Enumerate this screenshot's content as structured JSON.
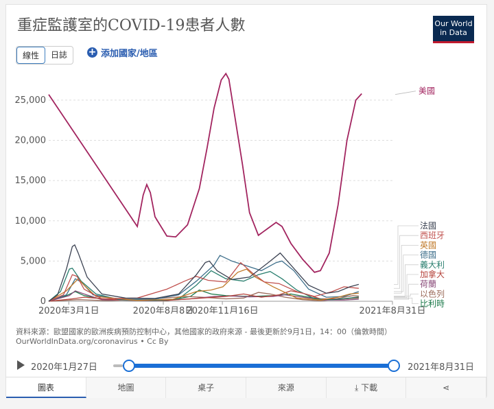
{
  "title": "重症監護室的COVID-19患者人數",
  "logo": {
    "line1": "Our World",
    "line2": "in Data"
  },
  "toggle": {
    "linear": "線性",
    "log": "日誌"
  },
  "add_country": "添加國家/地區",
  "source_line1": "資料來源：歐盟國家的歐洲疾病預防控制中心，其他國家的政府來源 - 最後更新於9月1日，14：00（倫敦時間）",
  "source_line2": "OurWorldInData.org/coronavirus • Cc By",
  "timeline": {
    "start": "2020年1月27日",
    "end": "2021年8月31日"
  },
  "tabs": [
    {
      "label": "圖表"
    },
    {
      "label": "地圖"
    },
    {
      "label": "桌子"
    },
    {
      "label": "來源"
    },
    {
      "label": "下載"
    },
    {
      "label": ""
    }
  ],
  "colors": {
    "美國": "#a2245f",
    "法國": "#3b4252",
    "西班牙": "#c0504d",
    "英國": "#c07a2a",
    "德國": "#3d6e8a",
    "義大利": "#2a7f6f",
    "加拿大": "#b5423a",
    "荷蘭": "#8a4b7a",
    "以色列": "#9b6b5a",
    "比利時": "#1c7a4a"
  },
  "chart_data": {
    "type": "line",
    "title": "重症監護室的COVID-19患者人數",
    "x_ticks": [
      {
        "label": "2020年3月1日",
        "t": 34
      },
      {
        "label": "2020年8月8日",
        "t": 194
      },
      {
        "label": "2020年11月16日",
        "t": 294
      },
      {
        "label": "2021年8月31日",
        "t": 582
      }
    ],
    "x_range": [
      0,
      582
    ],
    "ylim": [
      0,
      29000
    ],
    "y_ticks": [
      0,
      5000,
      10000,
      15000,
      20000,
      25000
    ],
    "y_tick_labels": [
      "0",
      "5,000",
      "10,000",
      "15,000",
      "20,000",
      "25,000"
    ],
    "series": [
      {
        "name": "美國",
        "points": [
          [
            0,
            25700
          ],
          [
            150,
            9300
          ],
          [
            160,
            13200
          ],
          [
            166,
            14500
          ],
          [
            172,
            13500
          ],
          [
            180,
            10500
          ],
          [
            200,
            8100
          ],
          [
            215,
            8000
          ],
          [
            235,
            9500
          ],
          [
            255,
            14000
          ],
          [
            268,
            19000
          ],
          [
            280,
            24000
          ],
          [
            292,
            27500
          ],
          [
            300,
            28300
          ],
          [
            305,
            27600
          ],
          [
            315,
            23000
          ],
          [
            328,
            17000
          ],
          [
            340,
            11000
          ],
          [
            355,
            8200
          ],
          [
            370,
            9000
          ],
          [
            385,
            9800
          ],
          [
            395,
            9300
          ],
          [
            410,
            7200
          ],
          [
            430,
            5200
          ],
          [
            450,
            3600
          ],
          [
            460,
            3800
          ],
          [
            475,
            6000
          ],
          [
            490,
            12000
          ],
          [
            505,
            20000
          ],
          [
            520,
            25000
          ],
          [
            530,
            25800
          ]
        ]
      },
      {
        "name": "法國",
        "points": [
          [
            0,
            0
          ],
          [
            15,
            800
          ],
          [
            30,
            4000
          ],
          [
            40,
            6800
          ],
          [
            44,
            7000
          ],
          [
            50,
            6000
          ],
          [
            65,
            3000
          ],
          [
            90,
            900
          ],
          [
            130,
            400
          ],
          [
            180,
            350
          ],
          [
            220,
            900
          ],
          [
            250,
            3300
          ],
          [
            265,
            4800
          ],
          [
            272,
            5000
          ],
          [
            285,
            3800
          ],
          [
            310,
            2700
          ],
          [
            340,
            3000
          ],
          [
            370,
            4700
          ],
          [
            392,
            6000
          ],
          [
            410,
            4500
          ],
          [
            440,
            2000
          ],
          [
            470,
            1000
          ],
          [
            490,
            1200
          ],
          [
            510,
            1800
          ],
          [
            525,
            2100
          ]
        ]
      },
      {
        "name": "西班牙",
        "points": [
          [
            0,
            0
          ],
          [
            25,
            800
          ],
          [
            40,
            3300
          ],
          [
            48,
            3100
          ],
          [
            60,
            1500
          ],
          [
            90,
            300
          ],
          [
            150,
            400
          ],
          [
            200,
            1500
          ],
          [
            230,
            2500
          ],
          [
            250,
            3100
          ],
          [
            270,
            2600
          ],
          [
            300,
            2400
          ],
          [
            325,
            4800
          ],
          [
            345,
            3500
          ],
          [
            365,
            2400
          ],
          [
            390,
            2200
          ],
          [
            420,
            1200
          ],
          [
            450,
            600
          ],
          [
            480,
            1200
          ],
          [
            500,
            1800
          ],
          [
            525,
            1600
          ]
        ]
      },
      {
        "name": "英國",
        "points": [
          [
            0,
            0
          ],
          [
            30,
            1300
          ],
          [
            50,
            2800
          ],
          [
            60,
            2000
          ],
          [
            80,
            600
          ],
          [
            150,
            100
          ],
          [
            210,
            250
          ],
          [
            250,
            1200
          ],
          [
            275,
            1400
          ],
          [
            295,
            1800
          ],
          [
            320,
            3600
          ],
          [
            335,
            4000
          ],
          [
            350,
            3000
          ],
          [
            380,
            1800
          ],
          [
            420,
            400
          ],
          [
            460,
            150
          ],
          [
            490,
            500
          ],
          [
            510,
            900
          ],
          [
            525,
            1000
          ]
        ]
      },
      {
        "name": "德國",
        "points": [
          [
            0,
            0
          ],
          [
            30,
            800
          ],
          [
            45,
            2800
          ],
          [
            55,
            2400
          ],
          [
            75,
            800
          ],
          [
            120,
            250
          ],
          [
            180,
            250
          ],
          [
            220,
            800
          ],
          [
            250,
            2500
          ],
          [
            280,
            4500
          ],
          [
            290,
            5700
          ],
          [
            310,
            5000
          ],
          [
            335,
            4400
          ],
          [
            360,
            3800
          ],
          [
            385,
            4800
          ],
          [
            395,
            5000
          ],
          [
            415,
            3800
          ],
          [
            440,
            1500
          ],
          [
            470,
            500
          ],
          [
            500,
            600
          ],
          [
            525,
            1200
          ]
        ]
      },
      {
        "name": "義大利",
        "points": [
          [
            0,
            0
          ],
          [
            20,
            1200
          ],
          [
            35,
            4000
          ],
          [
            40,
            4100
          ],
          [
            55,
            2500
          ],
          [
            80,
            900
          ],
          [
            120,
            200
          ],
          [
            180,
            100
          ],
          [
            220,
            300
          ],
          [
            250,
            2000
          ],
          [
            275,
            3800
          ],
          [
            300,
            2800
          ],
          [
            330,
            2500
          ],
          [
            355,
            3300
          ],
          [
            375,
            3700
          ],
          [
            395,
            2800
          ],
          [
            420,
            1400
          ],
          [
            450,
            300
          ],
          [
            480,
            200
          ],
          [
            510,
            400
          ],
          [
            525,
            550
          ]
        ]
      },
      {
        "name": "加拿大",
        "points": [
          [
            0,
            0
          ],
          [
            40,
            300
          ],
          [
            60,
            500
          ],
          [
            120,
            150
          ],
          [
            200,
            100
          ],
          [
            260,
            400
          ],
          [
            300,
            600
          ],
          [
            330,
            900
          ],
          [
            360,
            500
          ],
          [
            390,
            800
          ],
          [
            410,
            1300
          ],
          [
            430,
            1000
          ],
          [
            460,
            300
          ],
          [
            500,
            300
          ],
          [
            525,
            450
          ]
        ]
      },
      {
        "name": "荷蘭",
        "points": [
          [
            0,
            0
          ],
          [
            35,
            700
          ],
          [
            45,
            1300
          ],
          [
            60,
            900
          ],
          [
            90,
            200
          ],
          [
            180,
            50
          ],
          [
            240,
            300
          ],
          [
            280,
            600
          ],
          [
            310,
            650
          ],
          [
            340,
            550
          ],
          [
            380,
            600
          ],
          [
            400,
            800
          ],
          [
            430,
            500
          ],
          [
            470,
            150
          ],
          [
            500,
            150
          ],
          [
            525,
            250
          ]
        ]
      },
      {
        "name": "以色列",
        "points": [
          [
            0,
            0
          ],
          [
            50,
            200
          ],
          [
            100,
            80
          ],
          [
            180,
            300
          ],
          [
            230,
            600
          ],
          [
            260,
            500
          ],
          [
            300,
            300
          ],
          [
            330,
            400
          ],
          [
            355,
            1100
          ],
          [
            375,
            900
          ],
          [
            400,
            500
          ],
          [
            430,
            200
          ],
          [
            460,
            50
          ],
          [
            480,
            200
          ],
          [
            500,
            500
          ],
          [
            515,
            700
          ],
          [
            525,
            650
          ]
        ]
      },
      {
        "name": "比利時",
        "points": [
          [
            0,
            0
          ],
          [
            30,
            700
          ],
          [
            45,
            1200
          ],
          [
            60,
            700
          ],
          [
            100,
            150
          ],
          [
            200,
            80
          ],
          [
            240,
            600
          ],
          [
            255,
            1400
          ],
          [
            275,
            900
          ],
          [
            300,
            700
          ],
          [
            340,
            600
          ],
          [
            380,
            700
          ],
          [
            410,
            900
          ],
          [
            440,
            500
          ],
          [
            470,
            200
          ],
          [
            500,
            300
          ],
          [
            525,
            400
          ]
        ]
      }
    ]
  }
}
